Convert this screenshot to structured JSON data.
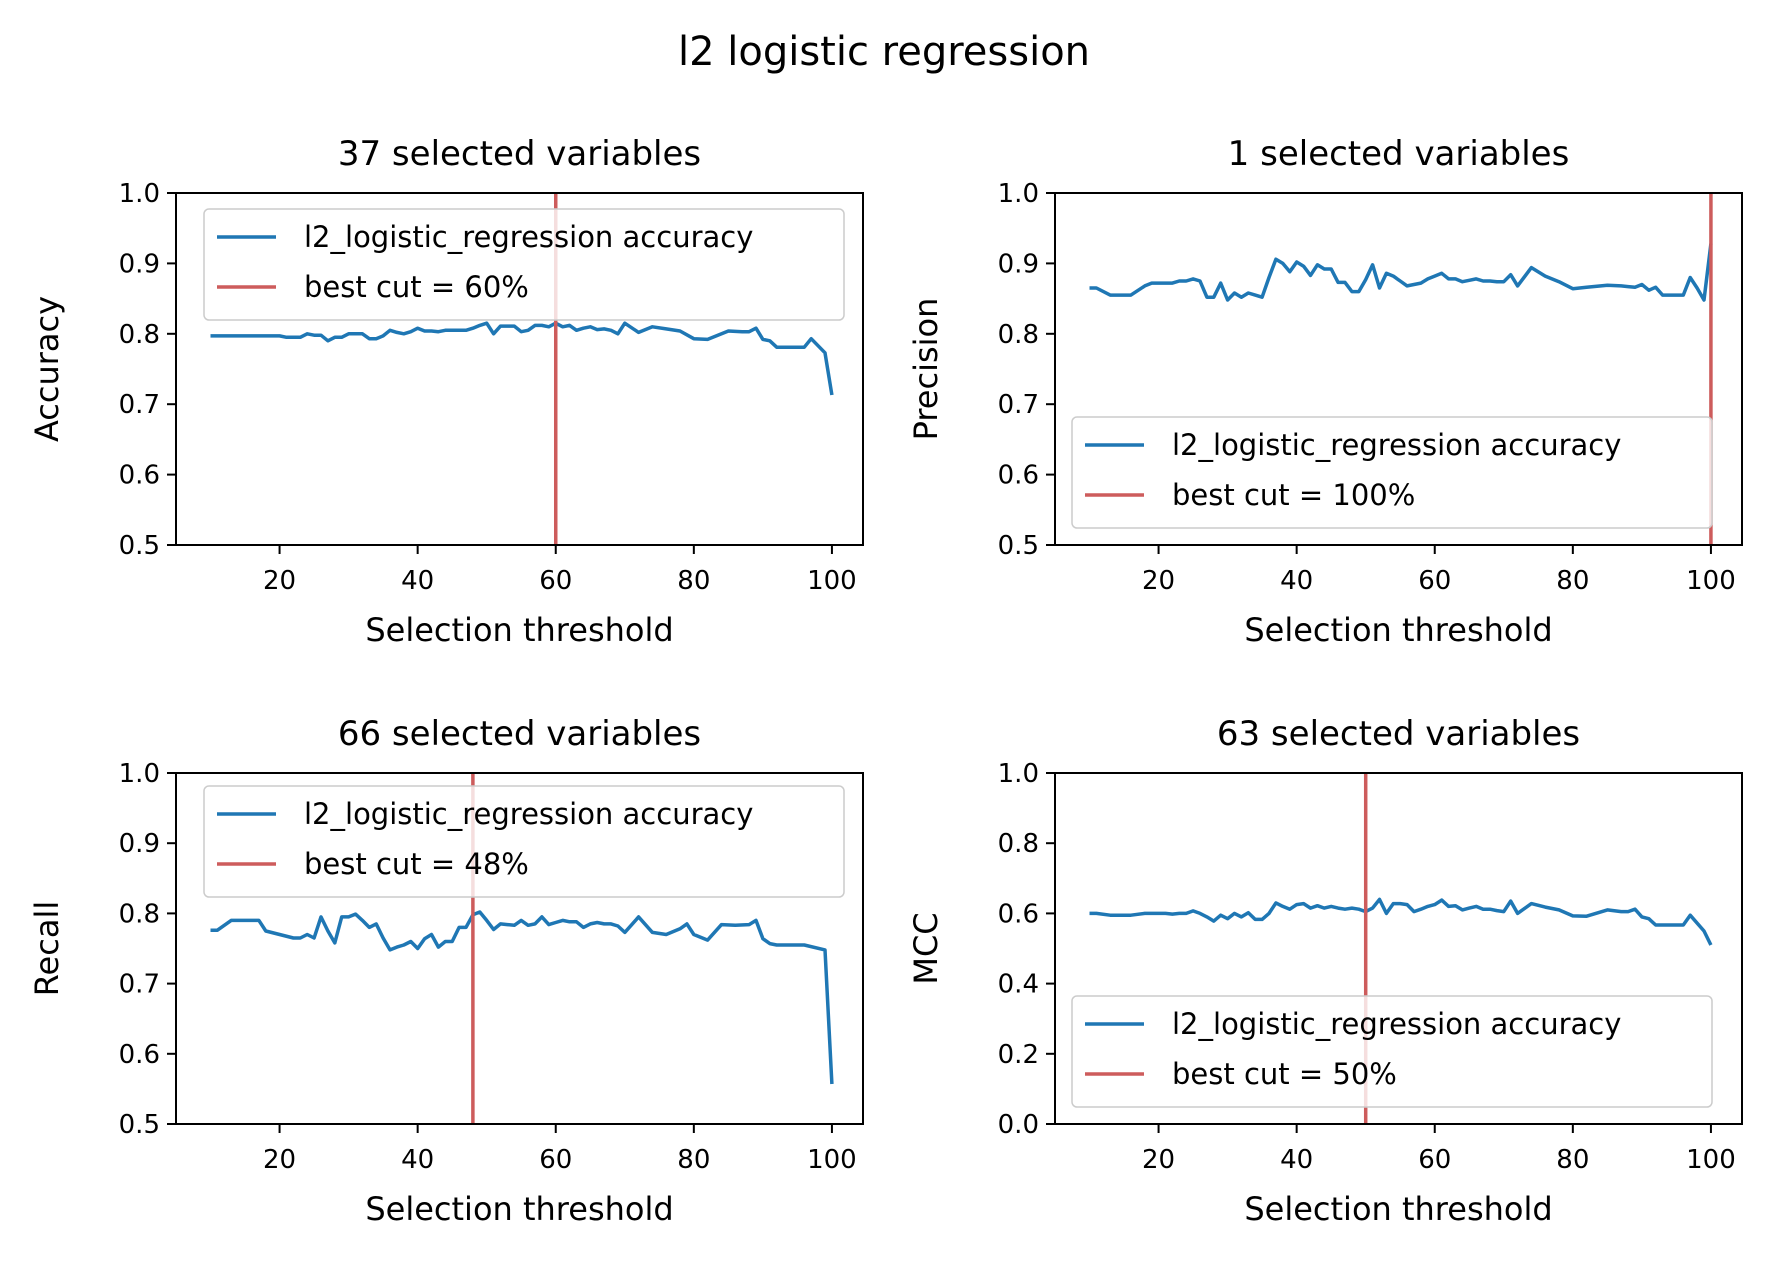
{
  "suptitle": "l2 logistic regression",
  "colors": {
    "series": "#1f77b4",
    "cut": "#cd5c5c",
    "axes": "#000000",
    "legend_border": "#cccccc"
  },
  "chart_data": [
    {
      "type": "line",
      "title": "37 selected variables",
      "xlabel": "Selection threshold",
      "ylabel": "Accuracy",
      "xlim": [
        5,
        104.5
      ],
      "ylim": [
        0.5,
        1.0
      ],
      "xticks": [
        "20",
        "40",
        "60",
        "80",
        "100"
      ],
      "yticks": [
        "0.5",
        "0.6",
        "0.7",
        "0.8",
        "0.9",
        "1.0"
      ],
      "grid": false,
      "legend_position": "upper left",
      "series": [
        {
          "name": "l2_logistic_regression accuracy",
          "x": [
            10,
            12,
            14,
            16,
            18,
            20,
            21,
            22,
            23,
            24,
            25,
            26,
            27,
            28,
            29,
            30,
            31,
            32,
            33,
            34,
            35,
            36,
            37,
            38,
            39,
            40,
            41,
            42,
            43,
            44,
            45,
            46,
            47,
            48,
            49,
            50,
            51,
            52,
            53,
            54,
            55,
            56,
            57,
            58,
            59,
            60,
            61,
            62,
            63,
            64,
            65,
            66,
            67,
            68,
            69,
            70,
            72,
            74,
            76,
            78,
            80,
            82,
            85,
            87,
            88,
            89,
            90,
            91,
            92,
            93,
            94,
            95,
            96,
            97,
            99,
            100
          ],
          "y": [
            0.797,
            0.797,
            0.797,
            0.797,
            0.797,
            0.797,
            0.795,
            0.795,
            0.795,
            0.8,
            0.798,
            0.798,
            0.79,
            0.795,
            0.795,
            0.8,
            0.8,
            0.8,
            0.793,
            0.793,
            0.797,
            0.805,
            0.802,
            0.8,
            0.803,
            0.808,
            0.804,
            0.804,
            0.803,
            0.805,
            0.805,
            0.805,
            0.805,
            0.808,
            0.812,
            0.815,
            0.8,
            0.811,
            0.811,
            0.811,
            0.803,
            0.805,
            0.812,
            0.812,
            0.81,
            0.815,
            0.81,
            0.812,
            0.805,
            0.808,
            0.81,
            0.806,
            0.807,
            0.805,
            0.8,
            0.815,
            0.802,
            0.81,
            0.807,
            0.804,
            0.793,
            0.792,
            0.804,
            0.803,
            0.803,
            0.808,
            0.792,
            0.79,
            0.781,
            0.781,
            0.781,
            0.781,
            0.781,
            0.793,
            0.773,
            0.713
          ]
        }
      ],
      "best_cut": {
        "label": "best cut = 60%",
        "x": 60
      }
    },
    {
      "type": "line",
      "title": "1 selected variables",
      "xlabel": "Selection threshold",
      "ylabel": "Precision",
      "xlim": [
        5,
        104.5
      ],
      "ylim": [
        0.5,
        1.0
      ],
      "xticks": [
        "20",
        "40",
        "60",
        "80",
        "100"
      ],
      "yticks": [
        "0.5",
        "0.6",
        "0.7",
        "0.8",
        "0.9",
        "1.0"
      ],
      "grid": false,
      "legend_position": "lower left",
      "series": [
        {
          "name": "l2_logistic_regression accuracy",
          "x": [
            10,
            11,
            13,
            15,
            16,
            18,
            19,
            20,
            21,
            22,
            23,
            24,
            25,
            26,
            27,
            28,
            29,
            30,
            31,
            32,
            33,
            34,
            35,
            36,
            37,
            38,
            39,
            40,
            41,
            42,
            43,
            44,
            45,
            46,
            47,
            48,
            49,
            50,
            51,
            52,
            53,
            54,
            55,
            56,
            57,
            58,
            59,
            60,
            61,
            62,
            63,
            64,
            65,
            66,
            67,
            68,
            69,
            70,
            71,
            72,
            74,
            76,
            78,
            80,
            82,
            85,
            87,
            88,
            89,
            90,
            91,
            92,
            93,
            94,
            95,
            96,
            97,
            98,
            99,
            100
          ],
          "y": [
            0.865,
            0.865,
            0.855,
            0.855,
            0.855,
            0.868,
            0.872,
            0.872,
            0.872,
            0.872,
            0.875,
            0.875,
            0.878,
            0.875,
            0.852,
            0.852,
            0.872,
            0.848,
            0.858,
            0.852,
            0.858,
            0.855,
            0.852,
            0.88,
            0.906,
            0.9,
            0.888,
            0.902,
            0.896,
            0.883,
            0.898,
            0.892,
            0.892,
            0.873,
            0.873,
            0.86,
            0.86,
            0.877,
            0.898,
            0.865,
            0.886,
            0.882,
            0.875,
            0.868,
            0.87,
            0.872,
            0.878,
            0.882,
            0.886,
            0.878,
            0.878,
            0.874,
            0.876,
            0.878,
            0.875,
            0.875,
            0.874,
            0.874,
            0.884,
            0.868,
            0.894,
            0.882,
            0.874,
            0.864,
            0.866,
            0.869,
            0.868,
            0.867,
            0.866,
            0.87,
            0.862,
            0.866,
            0.855,
            0.855,
            0.855,
            0.855,
            0.88,
            0.865,
            0.848,
            0.928
          ]
        }
      ],
      "best_cut": {
        "label": "best cut = 100%",
        "x": 100
      }
    },
    {
      "type": "line",
      "title": "66 selected variables",
      "xlabel": "Selection threshold",
      "ylabel": "Recall",
      "xlim": [
        5,
        104.5
      ],
      "ylim": [
        0.5,
        1.0
      ],
      "xticks": [
        "20",
        "40",
        "60",
        "80",
        "100"
      ],
      "yticks": [
        "0.5",
        "0.6",
        "0.7",
        "0.8",
        "0.9",
        "1.0"
      ],
      "grid": false,
      "legend_position": "upper left",
      "series": [
        {
          "name": "l2_logistic_regression accuracy",
          "x": [
            10,
            11,
            13,
            15,
            17,
            18,
            20,
            22,
            23,
            24,
            25,
            26,
            27,
            28,
            29,
            30,
            31,
            32,
            33,
            34,
            35,
            36,
            37,
            38,
            39,
            40,
            41,
            42,
            43,
            44,
            45,
            46,
            47,
            48,
            49,
            50,
            51,
            52,
            53,
            54,
            55,
            56,
            57,
            58,
            59,
            60,
            61,
            62,
            63,
            64,
            65,
            66,
            67,
            68,
            69,
            70,
            72,
            74,
            76,
            78,
            79,
            80,
            82,
            84,
            86,
            88,
            89,
            90,
            91,
            92,
            94,
            96,
            99,
            100
          ],
          "y": [
            0.776,
            0.776,
            0.79,
            0.79,
            0.79,
            0.775,
            0.77,
            0.765,
            0.765,
            0.77,
            0.765,
            0.795,
            0.775,
            0.758,
            0.795,
            0.795,
            0.799,
            0.79,
            0.78,
            0.785,
            0.765,
            0.748,
            0.752,
            0.755,
            0.76,
            0.75,
            0.764,
            0.77,
            0.752,
            0.76,
            0.76,
            0.78,
            0.78,
            0.798,
            0.802,
            0.79,
            0.777,
            0.785,
            0.784,
            0.783,
            0.79,
            0.783,
            0.785,
            0.795,
            0.784,
            0.787,
            0.79,
            0.788,
            0.788,
            0.78,
            0.785,
            0.787,
            0.785,
            0.785,
            0.782,
            0.773,
            0.795,
            0.773,
            0.77,
            0.778,
            0.785,
            0.77,
            0.762,
            0.784,
            0.783,
            0.784,
            0.79,
            0.764,
            0.757,
            0.755,
            0.755,
            0.755,
            0.748,
            0.557
          ]
        }
      ],
      "best_cut": {
        "label": "best cut = 48%",
        "x": 48
      }
    },
    {
      "type": "line",
      "title": "63 selected variables",
      "xlabel": "Selection threshold",
      "ylabel": "MCC",
      "xlim": [
        5,
        104.5
      ],
      "ylim": [
        0.0,
        1.0
      ],
      "xticks": [
        "20",
        "40",
        "60",
        "80",
        "100"
      ],
      "yticks": [
        "0.0",
        "0.2",
        "0.4",
        "0.6",
        "0.8",
        "1.0"
      ],
      "grid": false,
      "legend_position": "lower left",
      "series": [
        {
          "name": "l2_logistic_regression accuracy",
          "x": [
            10,
            11,
            13,
            15,
            16,
            18,
            20,
            21,
            22,
            23,
            24,
            25,
            26,
            27,
            28,
            29,
            30,
            31,
            32,
            33,
            34,
            35,
            36,
            37,
            38,
            39,
            40,
            41,
            42,
            43,
            44,
            45,
            46,
            47,
            48,
            49,
            50,
            51,
            52,
            53,
            54,
            55,
            56,
            57,
            58,
            59,
            60,
            61,
            62,
            63,
            64,
            65,
            66,
            67,
            68,
            69,
            70,
            71,
            72,
            74,
            76,
            78,
            80,
            82,
            85,
            87,
            88,
            89,
            90,
            91,
            92,
            94,
            96,
            97,
            99,
            100
          ],
          "y": [
            0.6,
            0.6,
            0.595,
            0.595,
            0.595,
            0.6,
            0.6,
            0.6,
            0.598,
            0.6,
            0.6,
            0.607,
            0.6,
            0.59,
            0.578,
            0.595,
            0.585,
            0.6,
            0.59,
            0.602,
            0.583,
            0.583,
            0.6,
            0.63,
            0.62,
            0.612,
            0.625,
            0.628,
            0.615,
            0.622,
            0.615,
            0.62,
            0.615,
            0.612,
            0.615,
            0.612,
            0.605,
            0.615,
            0.64,
            0.6,
            0.628,
            0.628,
            0.625,
            0.605,
            0.612,
            0.62,
            0.625,
            0.638,
            0.62,
            0.622,
            0.61,
            0.615,
            0.62,
            0.612,
            0.612,
            0.608,
            0.605,
            0.635,
            0.6,
            0.628,
            0.618,
            0.61,
            0.593,
            0.592,
            0.61,
            0.605,
            0.605,
            0.612,
            0.59,
            0.585,
            0.567,
            0.567,
            0.567,
            0.595,
            0.55,
            0.51
          ]
        }
      ],
      "best_cut": {
        "label": "best cut = 50%",
        "x": 50
      }
    }
  ]
}
